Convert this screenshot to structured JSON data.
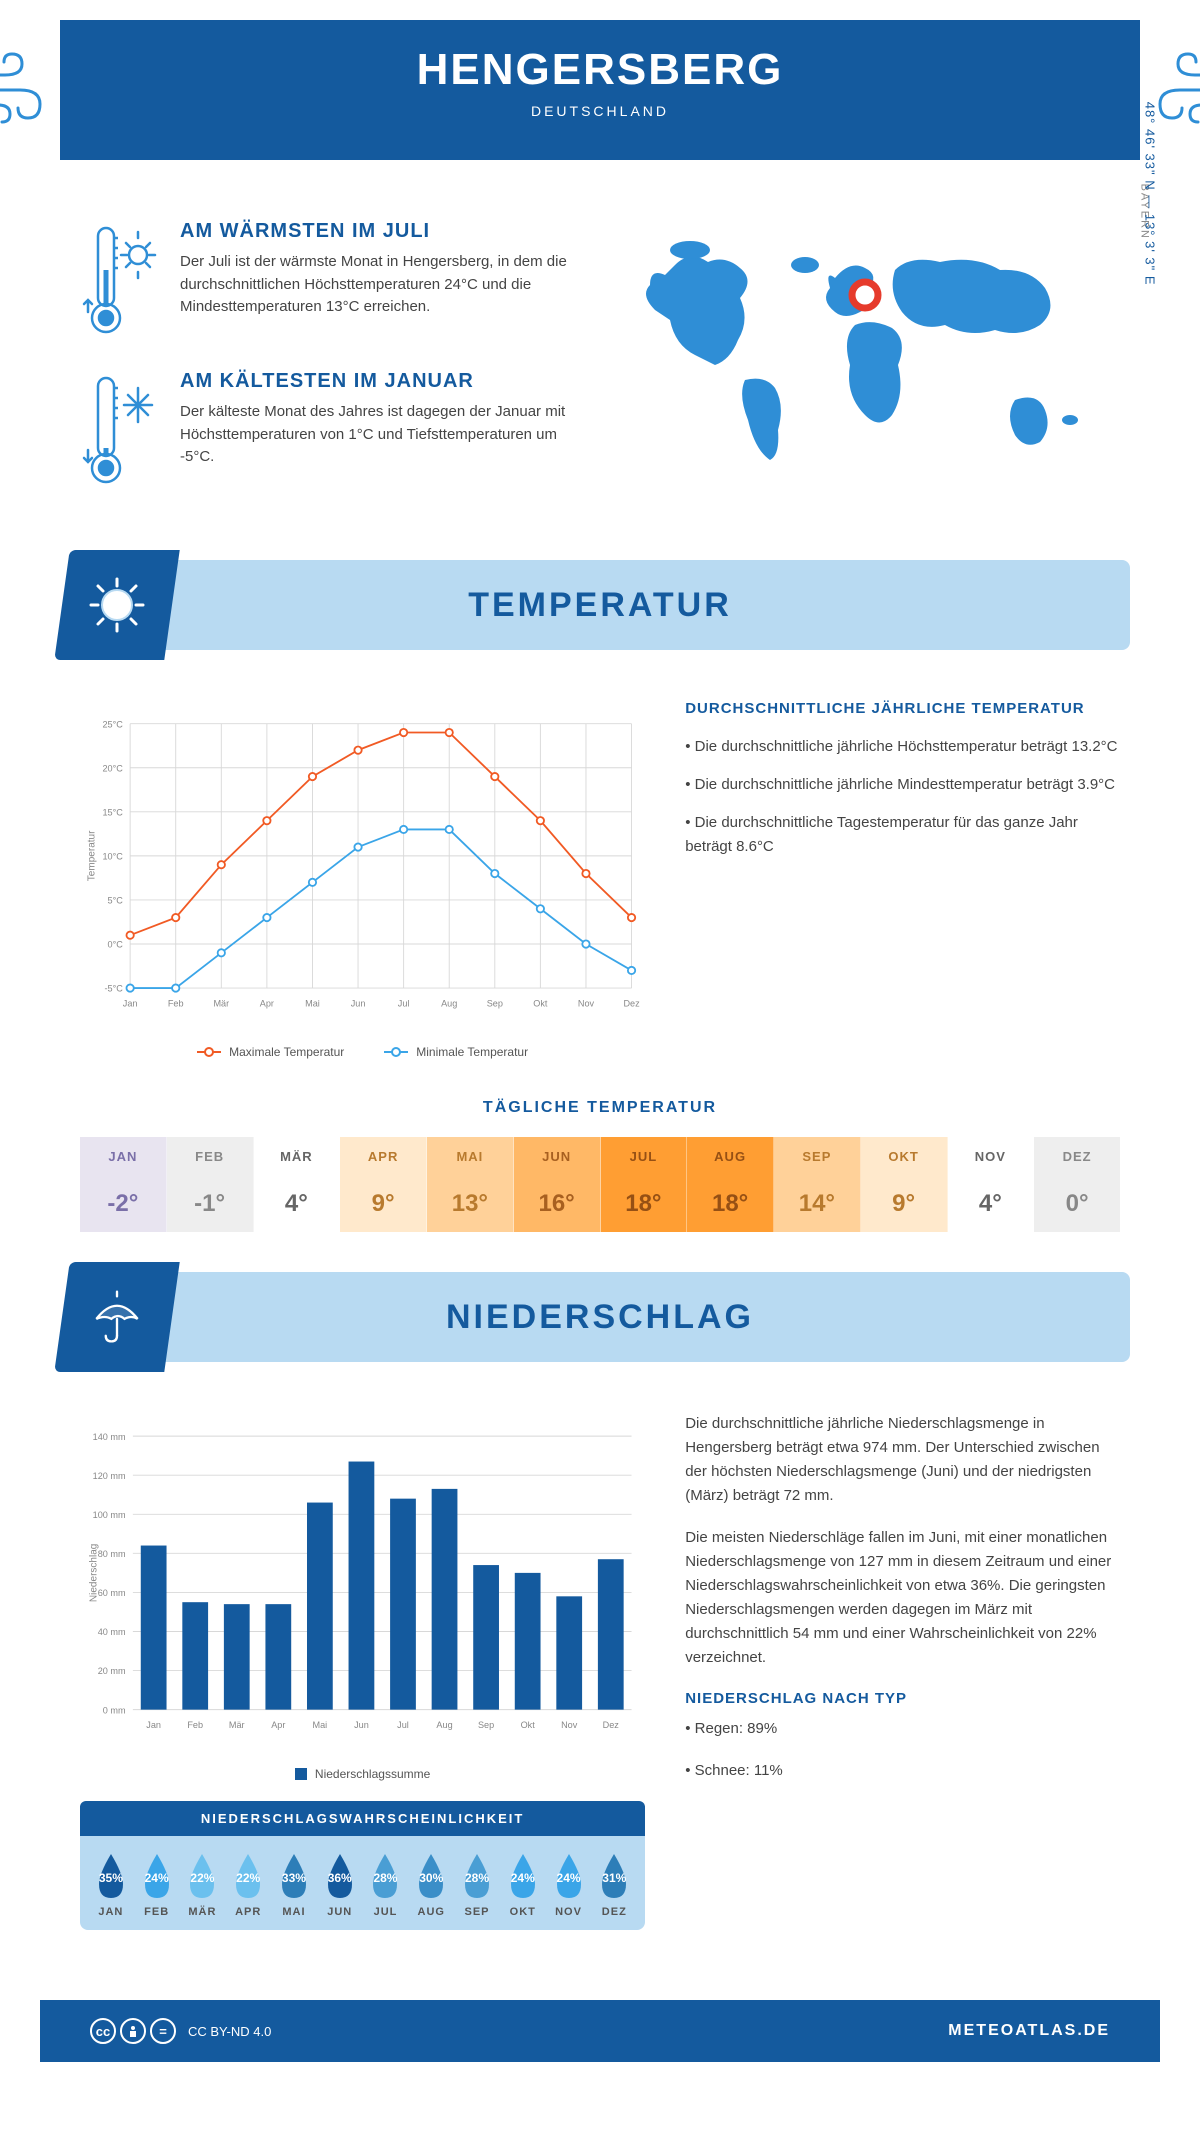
{
  "header": {
    "title": "HENGERSBERG",
    "country": "DEUTSCHLAND",
    "coords": "48° 46' 33\" N — 13° 3' 3\" E",
    "region": "BAYERN"
  },
  "colors": {
    "primary": "#145a9e",
    "light_blue": "#b8daf2",
    "mid_blue": "#2f8ed6",
    "orange": "#f15a24",
    "line_blue": "#3aa5e8",
    "grid": "#d8d8d8",
    "marker_red": "#e63b2c"
  },
  "warm": {
    "title": "AM WÄRMSTEN IM JULI",
    "text": "Der Juli ist der wärmste Monat in Hengersberg, in dem die durchschnittlichen Höchsttemperaturen 24°C und die Mindesttemperaturen 13°C erreichen."
  },
  "cold": {
    "title": "AM KÄLTESTEN IM JANUAR",
    "text": "Der kälteste Monat des Jahres ist dagegen der Januar mit Höchsttemperaturen von 1°C und Tiefsttemperaturen um -5°C."
  },
  "temp_section": {
    "title": "TEMPERATUR",
    "info_title": "DURCHSCHNITTLICHE JÄHRLICHE TEMPERATUR",
    "bullets": [
      "• Die durchschnittliche jährliche Höchsttemperatur beträgt 13.2°C",
      "• Die durchschnittliche jährliche Mindesttemperatur beträgt 3.9°C",
      "• Die durchschnittliche Tagestemperatur für das ganze Jahr beträgt 8.6°C"
    ],
    "chart": {
      "months": [
        "Jan",
        "Feb",
        "Mär",
        "Apr",
        "Mai",
        "Jun",
        "Jul",
        "Aug",
        "Sep",
        "Okt",
        "Nov",
        "Dez"
      ],
      "max": [
        1,
        3,
        9,
        14,
        19,
        22,
        24,
        24,
        19,
        14,
        8,
        3
      ],
      "min": [
        -5,
        -5,
        -1,
        3,
        7,
        11,
        13,
        13,
        8,
        4,
        0,
        -3
      ],
      "ylim": [
        -5,
        25
      ],
      "ytick_step": 5,
      "ylabel": "Temperatur",
      "legend_max": "Maximale Temperatur",
      "legend_min": "Minimale Temperatur",
      "max_color": "#f15a24",
      "min_color": "#3aa5e8",
      "grid_color": "#d8d8d8",
      "line_width": 2,
      "marker_size": 4
    }
  },
  "daily": {
    "title": "TÄGLICHE TEMPERATUR",
    "months": [
      "JAN",
      "FEB",
      "MÄR",
      "APR",
      "MAI",
      "JUN",
      "JUL",
      "AUG",
      "SEP",
      "OKT",
      "NOV",
      "DEZ"
    ],
    "values": [
      "-2°",
      "-1°",
      "4°",
      "9°",
      "13°",
      "16°",
      "18°",
      "18°",
      "14°",
      "9°",
      "4°",
      "0°"
    ],
    "bg": [
      "#e8e4f0",
      "#eeeeee",
      "#ffffff",
      "#ffe9cc",
      "#ffd199",
      "#ffb866",
      "#ff9e33",
      "#ff9e33",
      "#ffd199",
      "#ffe9cc",
      "#ffffff",
      "#eeeeee"
    ],
    "text": [
      "#7a6fa8",
      "#888",
      "#666",
      "#b87a2e",
      "#b87a2e",
      "#a86020",
      "#965014",
      "#965014",
      "#b87a2e",
      "#b87a2e",
      "#666",
      "#888"
    ]
  },
  "precip_section": {
    "title": "NIEDERSCHLAG",
    "chart": {
      "months": [
        "Jan",
        "Feb",
        "Mär",
        "Apr",
        "Mai",
        "Jun",
        "Jul",
        "Aug",
        "Sep",
        "Okt",
        "Nov",
        "Dez"
      ],
      "values": [
        84,
        55,
        54,
        54,
        106,
        127,
        108,
        113,
        74,
        70,
        58,
        77
      ],
      "ylim": [
        0,
        140
      ],
      "ytick_step": 20,
      "ylabel": "Niederschlag",
      "bar_color": "#145a9e",
      "legend": "Niederschlagssumme",
      "grid_color": "#d8d8d8",
      "bar_width": 0.62
    },
    "para1": "Die durchschnittliche jährliche Niederschlagsmenge in Hengersberg beträgt etwa 974 mm. Der Unterschied zwischen der höchsten Niederschlagsmenge (Juni) und der niedrigsten (März) beträgt 72 mm.",
    "para2": "Die meisten Niederschläge fallen im Juni, mit einer monatlichen Niederschlagsmenge von 127 mm in diesem Zeitraum und einer Niederschlagswahrscheinlichkeit von etwa 36%. Die geringsten Niederschlagsmengen werden dagegen im März mit durchschnittlich 54 mm und einer Wahrscheinlichkeit von 22% verzeichnet.",
    "type_title": "NIEDERSCHLAG NACH TYP",
    "type_items": [
      "• Regen: 89%",
      "• Schnee: 11%"
    ]
  },
  "prob": {
    "title": "NIEDERSCHLAGSWAHRSCHEINLICHKEIT",
    "months": [
      "JAN",
      "FEB",
      "MÄR",
      "APR",
      "MAI",
      "JUN",
      "JUL",
      "AUG",
      "SEP",
      "OKT",
      "NOV",
      "DEZ"
    ],
    "values": [
      "35%",
      "24%",
      "22%",
      "22%",
      "33%",
      "36%",
      "28%",
      "30%",
      "28%",
      "24%",
      "24%",
      "31%"
    ],
    "colors": [
      "#145a9e",
      "#3aa5e8",
      "#6bc0ee",
      "#6bc0ee",
      "#2d7eb8",
      "#145a9e",
      "#4a9ed4",
      "#3a8ec8",
      "#4a9ed4",
      "#3aa5e8",
      "#3aa5e8",
      "#2d7eb8"
    ]
  },
  "footer": {
    "license": "CC BY-ND 4.0",
    "site": "METEOATLAS.DE"
  }
}
